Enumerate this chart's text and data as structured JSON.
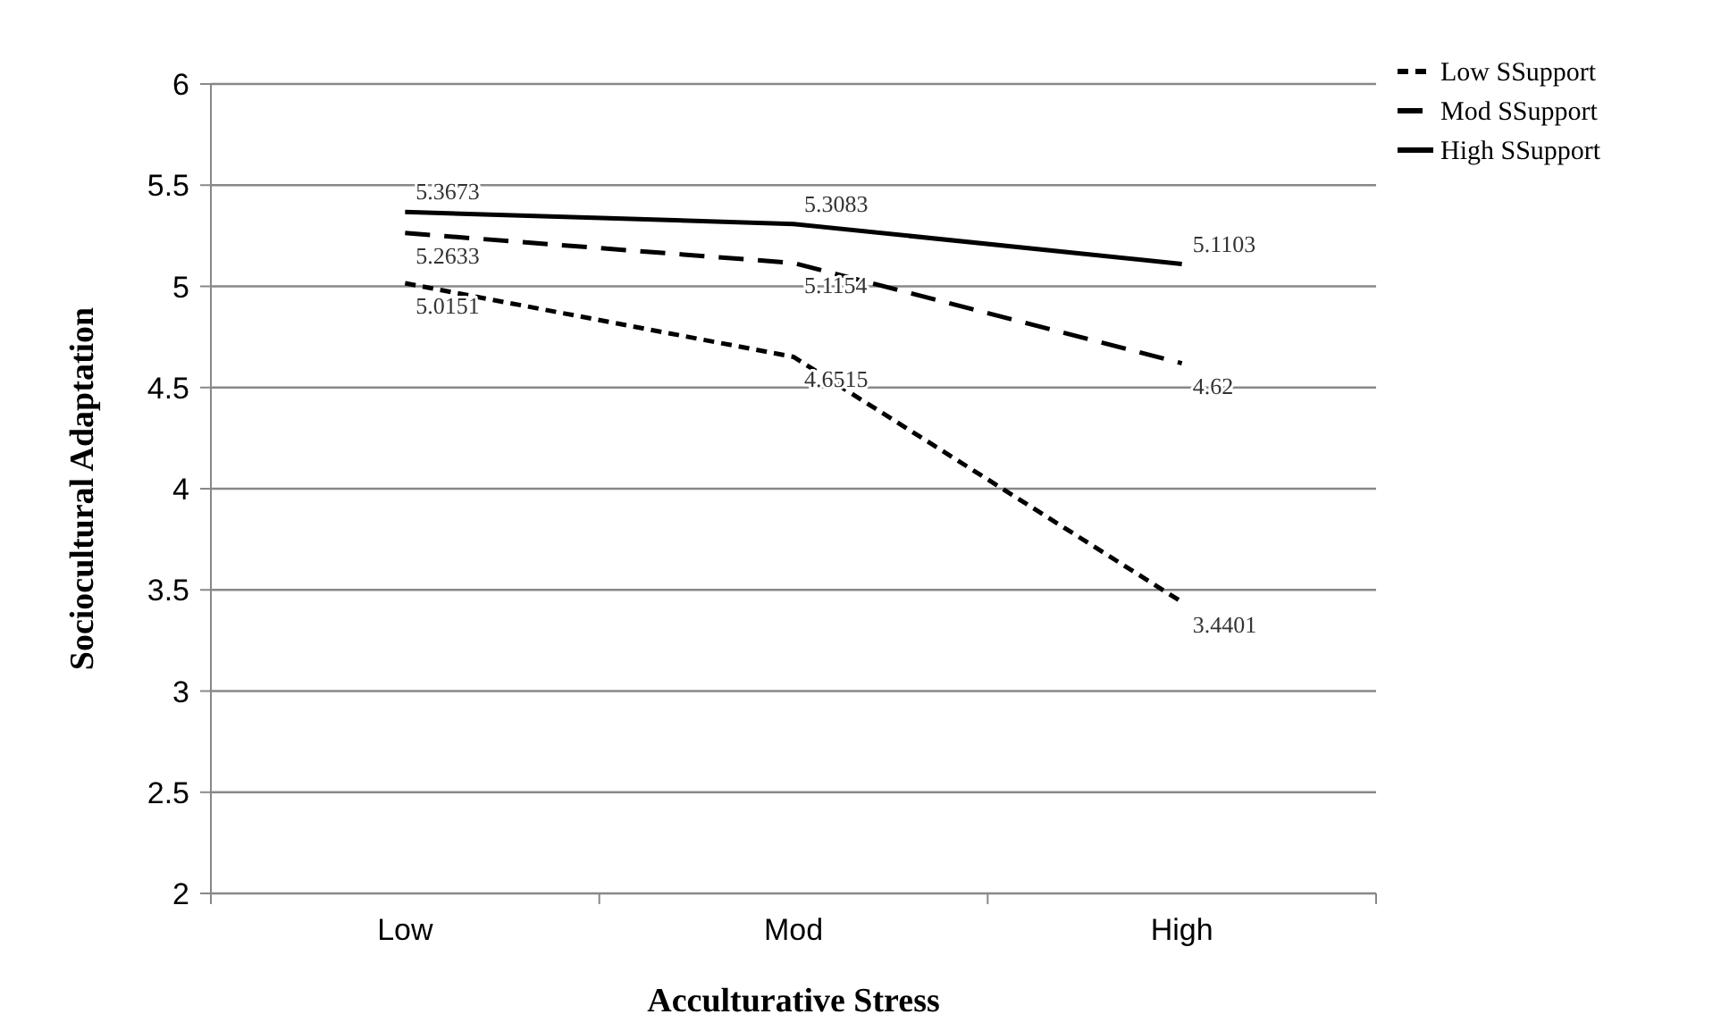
{
  "chart_data": {
    "type": "line",
    "xlabel": "Acculturative Stress",
    "ylabel": "Sociocultural Adaptation",
    "categories": [
      "Low",
      "Mod",
      "High"
    ],
    "series": [
      {
        "name": "Low SSupport",
        "color": "#000000",
        "line_style": "dotted",
        "values": [
          5.0151,
          4.6515,
          3.4401
        ]
      },
      {
        "name": "Mod SSupport",
        "color": "#000000",
        "line_style": "dashed",
        "values": [
          5.2633,
          5.1154,
          4.62
        ]
      },
      {
        "name": "High SSupport",
        "color": "#000000",
        "line_style": "solid",
        "values": [
          5.3673,
          5.3083,
          5.1103
        ]
      }
    ],
    "ylim": [
      2,
      6
    ],
    "yticks": [
      2,
      2.5,
      3,
      3.5,
      4,
      4.5,
      5,
      5.5,
      6
    ],
    "grid": "y",
    "legend": "top right",
    "data_labels": true,
    "marker": "none"
  }
}
